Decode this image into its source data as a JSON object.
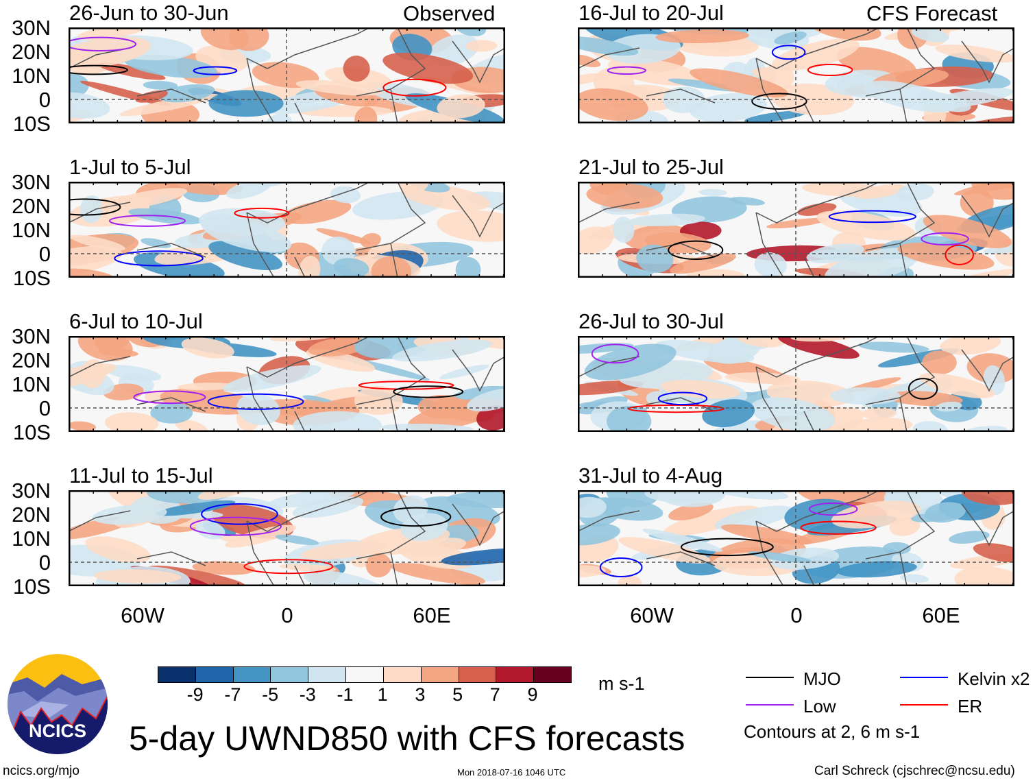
{
  "header": {
    "left_label": "Observed",
    "right_label": "CFS Forecast"
  },
  "panels": {
    "left": [
      "26-Jun to 30-Jun",
      "1-Jul to 5-Jul",
      "6-Jul to 10-Jul",
      "11-Jul to 15-Jul"
    ],
    "right": [
      "16-Jul to 20-Jul",
      "21-Jul to 25-Jul",
      "26-Jul to 30-Jul",
      "31-Jul to 4-Aug"
    ]
  },
  "lat_labels": [
    "30N",
    "20N",
    "10N",
    "0",
    "10S"
  ],
  "lon_labels": [
    "60W",
    "0",
    "60E"
  ],
  "colorbar": {
    "colors": [
      "#08306b",
      "#2166ac",
      "#4393c3",
      "#92c5de",
      "#d1e5f0",
      "#f7f7f7",
      "#fddbc7",
      "#f4a582",
      "#d6604d",
      "#b2182b",
      "#67001f"
    ],
    "labels": [
      "-9",
      "-7",
      "-5",
      "-3",
      "-1",
      "1",
      "3",
      "5",
      "7",
      "9"
    ],
    "units": "m s-1"
  },
  "legend": {
    "items": [
      {
        "label": "MJO",
        "color": "#000000"
      },
      {
        "label": "Kelvin x2",
        "color": "#0000ff"
      },
      {
        "label": "Low",
        "color": "#a020f0"
      },
      {
        "label": "ER",
        "color": "#ff0000"
      }
    ],
    "note": "Contours at 2, 6 m s-1"
  },
  "title": "5-day UWND850 with CFS forecasts",
  "logo_text": "NCICS",
  "footer": {
    "url": "ncics.org/mjo",
    "timestamp": "Mon 2018-07-16 1046 UTC",
    "credit": "Carl Schreck (cjschrec@ncsu.edu)"
  }
}
